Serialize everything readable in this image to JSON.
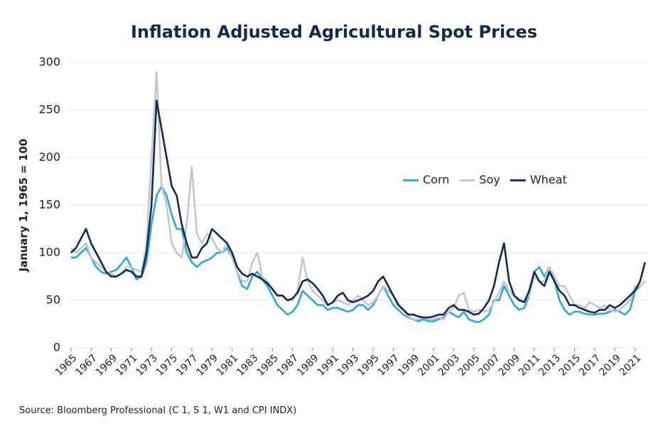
{
  "chart_data": {
    "type": "line",
    "title": "Inflation Adjusted Agricultural Spot Prices",
    "y_label": "January 1, 1965 = 100",
    "source": "Source: Bloomberg Professional (C 1, S 1, W1 and CPI INDX)",
    "xlim": [
      1964.8,
      2022.3
    ],
    "ylim": [
      0,
      300
    ],
    "yticks": [
      0,
      50,
      100,
      150,
      200,
      250,
      300
    ],
    "xticks": [
      1965,
      1967,
      1969,
      1971,
      1973,
      1975,
      1977,
      1979,
      1981,
      1983,
      1985,
      1987,
      1989,
      1991,
      1993,
      1995,
      1997,
      1999,
      2001,
      2003,
      2005,
      2007,
      2009,
      2011,
      2013,
      2015,
      2017,
      2019,
      2021
    ],
    "grid": true,
    "legend": "right",
    "x": [
      1965,
      1965.5,
      1966,
      1966.5,
      1967,
      1967.5,
      1968,
      1968.5,
      1969,
      1969.5,
      1970,
      1970.5,
      1971,
      1971.5,
      1972,
      1972.5,
      1973,
      1973.5,
      1974,
      1974.5,
      1975,
      1975.5,
      1976,
      1976.5,
      1977,
      1977.5,
      1978,
      1978.5,
      1979,
      1979.5,
      1980,
      1980.5,
      1981,
      1981.5,
      1982,
      1982.5,
      1983,
      1983.5,
      1984,
      1984.5,
      1985,
      1985.5,
      1986,
      1986.5,
      1987,
      1987.5,
      1988,
      1988.5,
      1989,
      1989.5,
      1990,
      1990.5,
      1991,
      1991.5,
      1992,
      1992.5,
      1993,
      1993.5,
      1994,
      1994.5,
      1995,
      1995.5,
      1996,
      1996.5,
      1997,
      1997.5,
      1998,
      1998.5,
      1999,
      1999.5,
      2000,
      2000.5,
      2001,
      2001.5,
      2002,
      2002.5,
      2003,
      2003.5,
      2004,
      2004.5,
      2005,
      2005.5,
      2006,
      2006.5,
      2007,
      2007.5,
      2008,
      2008.5,
      2009,
      2009.5,
      2010,
      2010.5,
      2011,
      2011.5,
      2012,
      2012.5,
      2013,
      2013.5,
      2014,
      2014.5,
      2015,
      2015.5,
      2016,
      2016.5,
      2017,
      2017.5,
      2018,
      2018.5,
      2019,
      2019.5,
      2020,
      2020.5,
      2021,
      2021.5,
      2022
    ],
    "series": [
      {
        "name": "Corn",
        "color": "#29a8e0",
        "values": [
          95,
          95,
          100,
          105,
          95,
          85,
          80,
          78,
          80,
          82,
          88,
          95,
          85,
          72,
          75,
          90,
          130,
          160,
          170,
          160,
          140,
          125,
          125,
          100,
          90,
          85,
          90,
          92,
          95,
          100,
          100,
          105,
          95,
          80,
          65,
          62,
          75,
          80,
          72,
          65,
          55,
          45,
          40,
          35,
          38,
          45,
          60,
          55,
          50,
          45,
          45,
          40,
          42,
          42,
          40,
          38,
          40,
          45,
          45,
          40,
          45,
          55,
          65,
          55,
          45,
          40,
          35,
          32,
          30,
          28,
          30,
          28,
          28,
          30,
          32,
          38,
          35,
          32,
          38,
          30,
          28,
          27,
          30,
          35,
          50,
          50,
          65,
          55,
          45,
          40,
          42,
          55,
          80,
          85,
          75,
          85,
          70,
          50,
          40,
          35,
          38,
          38,
          36,
          35,
          35,
          36,
          36,
          38,
          40,
          38,
          35,
          40,
          60,
          65,
          70
        ]
      },
      {
        "name": "Soy",
        "color": "#c2c7cc",
        "values": [
          105,
          100,
          105,
          110,
          95,
          90,
          85,
          80,
          78,
          75,
          78,
          85,
          85,
          82,
          80,
          110,
          200,
          290,
          170,
          150,
          110,
          100,
          95,
          130,
          190,
          120,
          110,
          120,
          115,
          105,
          100,
          110,
          95,
          80,
          70,
          70,
          90,
          100,
          75,
          70,
          60,
          55,
          55,
          50,
          50,
          60,
          95,
          70,
          60,
          55,
          50,
          45,
          48,
          50,
          48,
          45,
          50,
          55,
          50,
          45,
          48,
          55,
          65,
          60,
          55,
          48,
          40,
          33,
          30,
          30,
          32,
          30,
          30,
          32,
          30,
          38,
          42,
          55,
          58,
          40,
          38,
          40,
          38,
          40,
          48,
          58,
          70,
          60,
          55,
          52,
          50,
          55,
          75,
          70,
          70,
          85,
          75,
          65,
          65,
          55,
          45,
          45,
          42,
          48,
          45,
          42,
          45,
          40,
          38,
          40,
          45,
          50,
          65,
          65,
          70
        ]
      },
      {
        "name": "Wheat",
        "color": "#14294b",
        "values": [
          100,
          105,
          115,
          125,
          110,
          100,
          90,
          80,
          75,
          75,
          78,
          82,
          80,
          75,
          75,
          100,
          150,
          260,
          230,
          200,
          170,
          160,
          130,
          110,
          95,
          95,
          105,
          110,
          125,
          120,
          115,
          110,
          100,
          85,
          78,
          75,
          78,
          75,
          72,
          68,
          62,
          55,
          55,
          50,
          52,
          58,
          70,
          72,
          68,
          62,
          55,
          45,
          48,
          55,
          58,
          50,
          48,
          50,
          52,
          55,
          60,
          70,
          75,
          65,
          55,
          45,
          40,
          35,
          35,
          33,
          32,
          32,
          33,
          35,
          35,
          42,
          45,
          40,
          40,
          38,
          35,
          36,
          42,
          50,
          65,
          90,
          110,
          70,
          55,
          50,
          48,
          60,
          80,
          70,
          65,
          80,
          70,
          60,
          55,
          45,
          45,
          42,
          40,
          38,
          37,
          40,
          40,
          45,
          42,
          45,
          50,
          55,
          60,
          70,
          90
        ]
      }
    ]
  }
}
